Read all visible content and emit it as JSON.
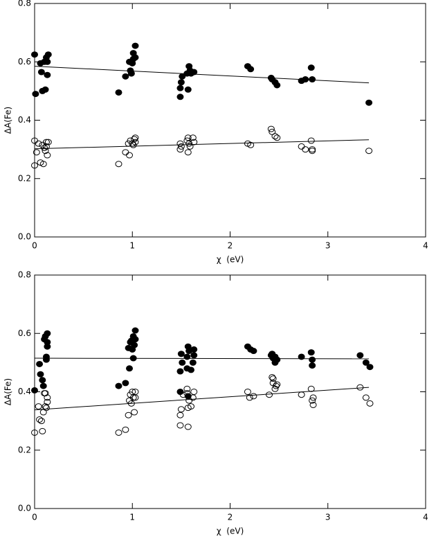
{
  "chart_data": [
    {
      "type": "scatter",
      "xlabel": "χ  (eV)",
      "ylabel": "ΔA(Fe)",
      "xlim": [
        0,
        4
      ],
      "ylim": [
        0,
        0.8
      ],
      "xticks": [
        0,
        1,
        2,
        3,
        4
      ],
      "yticks": [
        {
          "value": 0,
          "label": "0.0"
        },
        {
          "value": 0.2,
          "label": "0.2"
        },
        {
          "value": 0.4,
          "label": "0.4"
        },
        {
          "value": 0.6,
          "label": "0.6"
        },
        {
          "value": 0.8,
          "label": "0.8"
        }
      ],
      "series": [
        {
          "color": "#000000",
          "filled": true,
          "x": [
            0.0,
            0.01,
            0.06,
            0.07,
            0.08,
            0.1,
            0.11,
            0.12,
            0.13,
            0.14,
            0.13,
            0.86,
            0.93,
            0.97,
            0.98,
            0.99,
            1.01,
            1.01,
            1.03,
            1.03,
            1.0,
            1.49,
            1.49,
            1.5,
            1.51,
            1.56,
            1.57,
            1.58,
            1.59,
            1.6,
            1.63,
            2.18,
            2.21,
            2.42,
            2.43,
            2.46,
            2.48,
            2.73,
            2.77,
            2.83,
            2.84,
            3.42
          ],
          "values": [
            0.625,
            0.49,
            0.595,
            0.565,
            0.5,
            0.6,
            0.505,
            0.615,
            0.555,
            0.625,
            0.6,
            0.495,
            0.55,
            0.6,
            0.57,
            0.56,
            0.63,
            0.61,
            0.655,
            0.615,
            0.595,
            0.48,
            0.51,
            0.53,
            0.55,
            0.56,
            0.505,
            0.585,
            0.57,
            0.56,
            0.565,
            0.585,
            0.575,
            0.545,
            0.54,
            0.53,
            0.52,
            0.535,
            0.54,
            0.58,
            0.54,
            0.46
          ]
        },
        {
          "color": "#000000",
          "filled": false,
          "x": [
            0.0,
            0.0,
            0.02,
            0.04,
            0.06,
            0.08,
            0.09,
            0.1,
            0.11,
            0.12,
            0.13,
            0.14,
            0.12,
            0.86,
            0.93,
            0.96,
            0.97,
            0.98,
            1.0,
            1.01,
            1.02,
            1.03,
            1.03,
            1.49,
            1.49,
            1.5,
            1.56,
            1.57,
            1.57,
            1.58,
            1.59,
            1.62,
            1.63,
            2.18,
            2.21,
            2.42,
            2.43,
            2.46,
            2.48,
            2.73,
            2.77,
            2.83,
            2.84,
            2.84,
            3.42
          ],
          "values": [
            0.33,
            0.245,
            0.29,
            0.32,
            0.255,
            0.315,
            0.25,
            0.305,
            0.295,
            0.325,
            0.28,
            0.325,
            0.31,
            0.25,
            0.29,
            0.32,
            0.28,
            0.33,
            0.32,
            0.315,
            0.335,
            0.325,
            0.34,
            0.3,
            0.32,
            0.31,
            0.33,
            0.29,
            0.34,
            0.32,
            0.31,
            0.34,
            0.325,
            0.32,
            0.315,
            0.37,
            0.36,
            0.345,
            0.34,
            0.31,
            0.3,
            0.33,
            0.3,
            0.295,
            0.295
          ]
        }
      ],
      "fits": [
        {
          "color": "#000000",
          "x": [
            0,
            3.42
          ],
          "values": [
            0.585,
            0.528
          ]
        },
        {
          "color": "#000000",
          "x": [
            0,
            3.42
          ],
          "values": [
            0.302,
            0.333
          ]
        }
      ]
    },
    {
      "type": "scatter",
      "xlabel": "χ  (eV)",
      "ylabel": "ΔA(Fe)",
      "xlim": [
        0,
        4
      ],
      "ylim": [
        0,
        0.8
      ],
      "xticks": [
        0,
        1,
        2,
        3,
        4
      ],
      "yticks": [
        {
          "value": 0,
          "label": "0.0"
        },
        {
          "value": 0.2,
          "label": "0.2"
        },
        {
          "value": 0.4,
          "label": "0.4"
        },
        {
          "value": 0.6,
          "label": "0.6"
        },
        {
          "value": 0.8,
          "label": "0.8"
        }
      ],
      "series": [
        {
          "color": "#000000",
          "filled": true,
          "x": [
            0.0,
            0.05,
            0.06,
            0.08,
            0.09,
            0.1,
            0.11,
            0.12,
            0.12,
            0.13,
            0.13,
            0.13,
            0.86,
            0.93,
            0.96,
            0.97,
            0.98,
            0.99,
            1.0,
            1.01,
            1.01,
            1.02,
            1.03,
            1.03,
            1.49,
            1.49,
            1.5,
            1.51,
            1.56,
            1.56,
            1.57,
            1.57,
            1.58,
            1.6,
            1.62,
            1.63,
            1.63,
            2.18,
            2.21,
            2.24,
            2.42,
            2.43,
            2.44,
            2.46,
            2.46,
            2.48,
            2.73,
            2.83,
            2.84,
            2.84,
            3.33,
            3.39,
            3.43
          ],
          "values": [
            0.405,
            0.495,
            0.46,
            0.44,
            0.42,
            0.58,
            0.59,
            0.52,
            0.51,
            0.57,
            0.555,
            0.6,
            0.42,
            0.43,
            0.55,
            0.48,
            0.57,
            0.575,
            0.545,
            0.515,
            0.59,
            0.56,
            0.61,
            0.58,
            0.4,
            0.47,
            0.53,
            0.5,
            0.52,
            0.48,
            0.385,
            0.555,
            0.54,
            0.475,
            0.5,
            0.545,
            0.525,
            0.555,
            0.545,
            0.54,
            0.525,
            0.53,
            0.515,
            0.52,
            0.5,
            0.51,
            0.52,
            0.535,
            0.51,
            0.49,
            0.525,
            0.5,
            0.485
          ]
        },
        {
          "color": "#000000",
          "filled": false,
          "x": [
            0.0,
            0.04,
            0.05,
            0.07,
            0.08,
            0.1,
            0.11,
            0.11,
            0.12,
            0.13,
            0.13,
            0.09,
            0.86,
            0.93,
            0.96,
            0.97,
            0.98,
            0.99,
            1.0,
            1.01,
            1.02,
            1.03,
            1.03,
            1.49,
            1.49,
            1.5,
            1.52,
            1.56,
            1.56,
            1.57,
            1.57,
            1.58,
            1.6,
            1.62,
            1.63,
            2.18,
            2.2,
            2.24,
            2.4,
            2.43,
            2.44,
            2.44,
            2.46,
            2.47,
            2.48,
            2.73,
            2.83,
            2.84,
            2.85,
            2.85,
            3.33,
            3.39,
            3.43
          ],
          "values": [
            0.26,
            0.35,
            0.305,
            0.3,
            0.265,
            0.395,
            0.395,
            0.35,
            0.345,
            0.365,
            0.38,
            0.33,
            0.26,
            0.27,
            0.32,
            0.37,
            0.39,
            0.36,
            0.4,
            0.38,
            0.33,
            0.38,
            0.4,
            0.285,
            0.32,
            0.34,
            0.39,
            0.41,
            0.395,
            0.345,
            0.28,
            0.37,
            0.35,
            0.38,
            0.4,
            0.4,
            0.38,
            0.385,
            0.39,
            0.45,
            0.445,
            0.43,
            0.41,
            0.42,
            0.425,
            0.39,
            0.41,
            0.37,
            0.355,
            0.38,
            0.415,
            0.38,
            0.36
          ]
        }
      ],
      "fits": [
        {
          "color": "#000000",
          "x": [
            0,
            3.42
          ],
          "values": [
            0.515,
            0.513
          ]
        },
        {
          "color": "#000000",
          "x": [
            0,
            3.42
          ],
          "values": [
            0.338,
            0.415
          ]
        }
      ]
    }
  ]
}
